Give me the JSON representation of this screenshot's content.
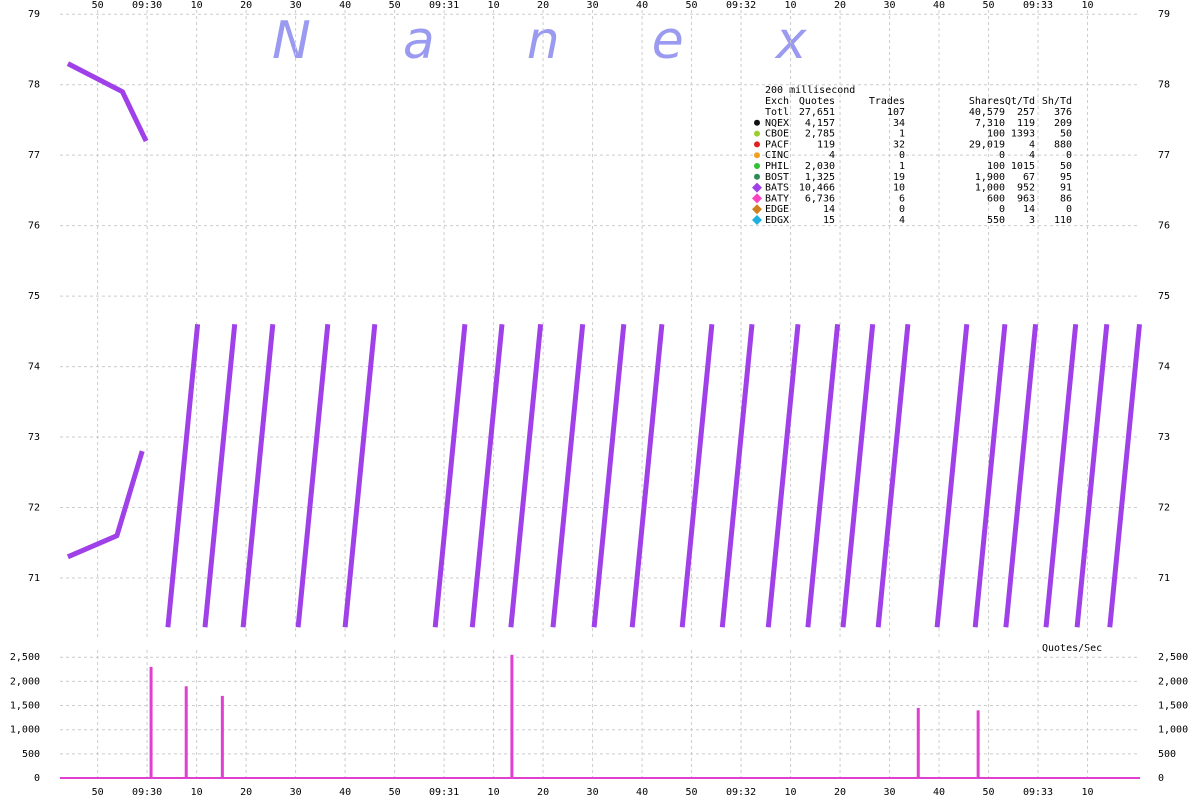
{
  "chart_data": {
    "type": "line",
    "watermark": "Nanex",
    "xlim": [
      34182.4,
      34400.6
    ],
    "xticks": [
      {
        "value": 34190,
        "label": "50"
      },
      {
        "value": 34200,
        "label": "09:30"
      },
      {
        "value": 34210,
        "label": "10"
      },
      {
        "value": 34220,
        "label": "20"
      },
      {
        "value": 34230,
        "label": "30"
      },
      {
        "value": 34240,
        "label": "40"
      },
      {
        "value": 34250,
        "label": "50"
      },
      {
        "value": 34260,
        "label": "09:31"
      },
      {
        "value": 34270,
        "label": "10"
      },
      {
        "value": 34280,
        "label": "20"
      },
      {
        "value": 34290,
        "label": "30"
      },
      {
        "value": 34300,
        "label": "40"
      },
      {
        "value": 34310,
        "label": "50"
      },
      {
        "value": 34320,
        "label": "09:32"
      },
      {
        "value": 34330,
        "label": "10"
      },
      {
        "value": 34340,
        "label": "20"
      },
      {
        "value": 34350,
        "label": "30"
      },
      {
        "value": 34360,
        "label": "40"
      },
      {
        "value": 34370,
        "label": "50"
      },
      {
        "value": 34380,
        "label": "09:33"
      },
      {
        "value": 34390,
        "label": "10"
      }
    ],
    "ylim": [
      70.12,
      79.06
    ],
    "yticks": [
      71,
      72,
      73,
      74,
      75,
      76,
      77,
      78,
      79
    ],
    "grid": true,
    "table": {
      "title": "200 millisecond",
      "header": [
        "Exch",
        "Quotes",
        "Trades",
        "Shares",
        "Qt/Td",
        "Sh/Td"
      ],
      "rows": [
        {
          "cells": [
            "Totl",
            "27,651",
            "107",
            "40,579",
            "257",
            "376"
          ]
        },
        {
          "cells": [
            "NQEX",
            "4,157",
            "34",
            "7,310",
            "119",
            "209"
          ],
          "color": "#111111",
          "marker": "circle"
        },
        {
          "cells": [
            "CBOE",
            "2,785",
            "1",
            "100",
            "1393",
            "50"
          ],
          "color": "#9acd32",
          "marker": "circle"
        },
        {
          "cells": [
            "PACF",
            "119",
            "32",
            "29,019",
            "4",
            "880"
          ],
          "color": "#e02020",
          "marker": "circle"
        },
        {
          "cells": [
            "CINC",
            "4",
            "0",
            "0",
            "4",
            "0"
          ],
          "color": "#f0a020",
          "marker": "circle"
        },
        {
          "cells": [
            "PHIL",
            "2,030",
            "1",
            "100",
            "1015",
            "50"
          ],
          "color": "#30c030",
          "marker": "circle"
        },
        {
          "cells": [
            "BOST",
            "1,325",
            "19",
            "1,900",
            "67",
            "95"
          ],
          "color": "#2e8b57",
          "marker": "circle"
        },
        {
          "cells": [
            "BATS",
            "10,466",
            "10",
            "1,000",
            "952",
            "91"
          ],
          "color": "#a040e8",
          "marker": "diamond"
        },
        {
          "cells": [
            "BATY",
            "6,736",
            "6",
            "600",
            "963",
            "86"
          ],
          "color": "#ff40c0",
          "marker": "diamond"
        },
        {
          "cells": [
            "EDGE",
            "14",
            "0",
            "0",
            "14",
            "0"
          ],
          "color": "#d08020",
          "marker": "diamond"
        },
        {
          "cells": [
            "EDGX",
            "15",
            "4",
            "550",
            "3",
            "110"
          ],
          "color": "#20b0e0",
          "marker": "diamond"
        }
      ]
    },
    "series": [
      {
        "color": "#a040e8",
        "x": [
          34184.0,
          34193.9,
          34199.0,
          null,
          34184.0,
          34195.0,
          34199.8,
          null,
          34204.2,
          34210.2,
          null,
          34211.7,
          34217.7,
          null,
          34219.4,
          34225.4,
          null,
          34230.5,
          34236.5,
          null,
          34240.0,
          34246.0,
          null,
          34258.2,
          34264.2,
          null,
          34265.7,
          34271.7,
          null,
          34273.5,
          34279.5,
          null,
          34282.0,
          34288.0,
          null,
          34290.3,
          34296.3,
          null,
          34298.0,
          34304.0,
          null,
          34308.1,
          34314.1,
          null,
          34316.2,
          34322.2,
          null,
          34325.5,
          34331.5,
          null,
          34333.5,
          34339.5,
          null,
          34340.6,
          34346.6,
          null,
          34347.7,
          34353.7,
          null,
          34359.6,
          34365.6,
          null,
          34367.3,
          34373.3,
          null,
          34373.5,
          34379.5,
          null,
          34381.6,
          34387.6,
          null,
          34387.9,
          34393.9,
          null,
          34394.5,
          34400.5
        ],
        "values": [
          71.3,
          71.6,
          72.8,
          null,
          78.3,
          77.9,
          77.2,
          null,
          70.3,
          74.6,
          null,
          70.3,
          74.6,
          null,
          70.3,
          74.6,
          null,
          70.3,
          74.6,
          null,
          70.3,
          74.6,
          null,
          70.3,
          74.6,
          null,
          70.3,
          74.6,
          null,
          70.3,
          74.6,
          null,
          70.3,
          74.6,
          null,
          70.3,
          74.6,
          null,
          70.3,
          74.6,
          null,
          70.3,
          74.6,
          null,
          70.3,
          74.6,
          null,
          70.3,
          74.6,
          null,
          70.3,
          74.6,
          null,
          70.3,
          74.6,
          null,
          70.3,
          74.6,
          null,
          70.3,
          74.6,
          null,
          70.3,
          74.6,
          null,
          70.3,
          74.6,
          null,
          70.3,
          74.6,
          null,
          70.3,
          74.6,
          null,
          70.3,
          74.6
        ]
      }
    ],
    "volume": {
      "label": "Quotes/Sec",
      "color": "#e040d0",
      "ylim": [
        0,
        2650
      ],
      "yticks": [
        0,
        500,
        {
          "value": 1000,
          "label": "1,000"
        },
        {
          "value": 1500,
          "label": "1,500"
        },
        {
          "value": 2000,
          "label": "2,000"
        },
        {
          "value": 2500,
          "label": "2,500"
        }
      ],
      "x": [
        34200.8,
        34207.9,
        34215.2,
        34273.7,
        34355.8,
        34367.9
      ],
      "values": [
        2300,
        1900,
        1700,
        2550,
        1450,
        1400
      ]
    }
  }
}
